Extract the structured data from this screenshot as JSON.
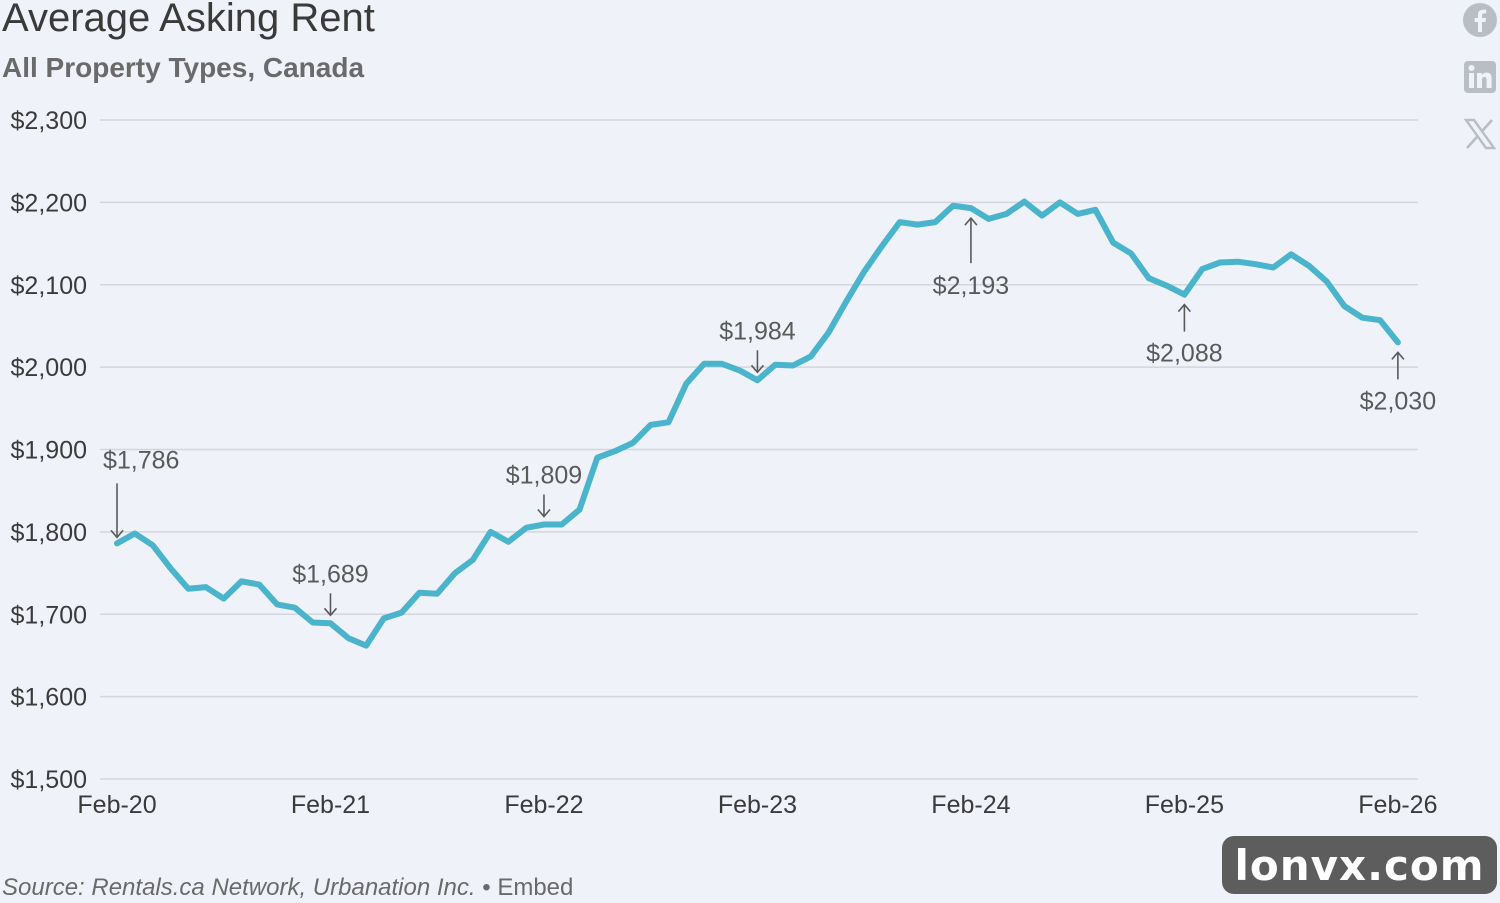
{
  "header": {
    "title": "Average Asking Rent",
    "subtitle": "All Property Types, Canada"
  },
  "share": {
    "icons": [
      "facebook-icon",
      "linkedin-icon",
      "x-icon"
    ]
  },
  "footer": {
    "source": "Source: Rentals.ca Network, Urbanation Inc.",
    "separator": "•",
    "embed": "Embed"
  },
  "watermark": {
    "text": "lonvx.com"
  },
  "colors": {
    "line": "#4ab4cc",
    "grid": "#d3d6dc",
    "text": "#3b3b3b",
    "subtext": "#6a6a6a",
    "annotation": "#5a5a5a"
  },
  "chart_data": {
    "type": "line",
    "title": "Average Asking Rent",
    "subtitle": "All Property Types, Canada",
    "xlabel": "",
    "ylabel": "",
    "ylim": [
      1500,
      2300
    ],
    "yticks": [
      1500,
      1600,
      1700,
      1800,
      1900,
      2000,
      2100,
      2200,
      2300
    ],
    "ytick_labels": [
      "$1,500",
      "$1,600",
      "$1,700",
      "$1,800",
      "$1,900",
      "$2,000",
      "$2,100",
      "$2,200",
      "$2,300"
    ],
    "xtick_labels": [
      "Feb-20",
      "Feb-21",
      "Feb-22",
      "Feb-23",
      "Feb-24",
      "Feb-25",
      "Feb-26"
    ],
    "xtick_index": [
      0,
      12,
      24,
      36,
      48,
      60,
      72
    ],
    "grid": true,
    "series": [
      {
        "values": [
          1786,
          1798,
          1784,
          1756,
          1731,
          1733,
          1719,
          1740,
          1736,
          1712,
          1708,
          1690,
          1689,
          1671,
          1662,
          1695,
          1702,
          1726,
          1725,
          1750,
          1766,
          1800,
          1788,
          1805,
          1809,
          1809,
          1827,
          1890,
          1898,
          1908,
          1930,
          1933,
          1980,
          2004,
          2004,
          1996,
          1984,
          2003,
          2002,
          2013,
          2042,
          2080,
          2116,
          2147,
          2176,
          2173,
          2176,
          2196,
          2193,
          2180,
          2186,
          2201,
          2184,
          2200,
          2186,
          2191,
          2151,
          2138,
          2108,
          2099,
          2088,
          2119,
          2127,
          2128,
          2125,
          2121,
          2137,
          2123,
          2104,
          2074,
          2060,
          2057,
          2030
        ]
      }
    ],
    "annotations": [
      {
        "index": 0,
        "value": 1786,
        "label": "$1,786"
      },
      {
        "index": 12,
        "value": 1689,
        "label": "$1,689"
      },
      {
        "index": 24,
        "value": 1809,
        "label": "$1,809"
      },
      {
        "index": 36,
        "value": 1984,
        "label": "$1,984"
      },
      {
        "index": 48,
        "value": 2193,
        "label": "$2,193"
      },
      {
        "index": 60,
        "value": 2088,
        "label": "$2,088"
      },
      {
        "index": 72,
        "value": 2030,
        "label": "$2,030"
      }
    ]
  }
}
